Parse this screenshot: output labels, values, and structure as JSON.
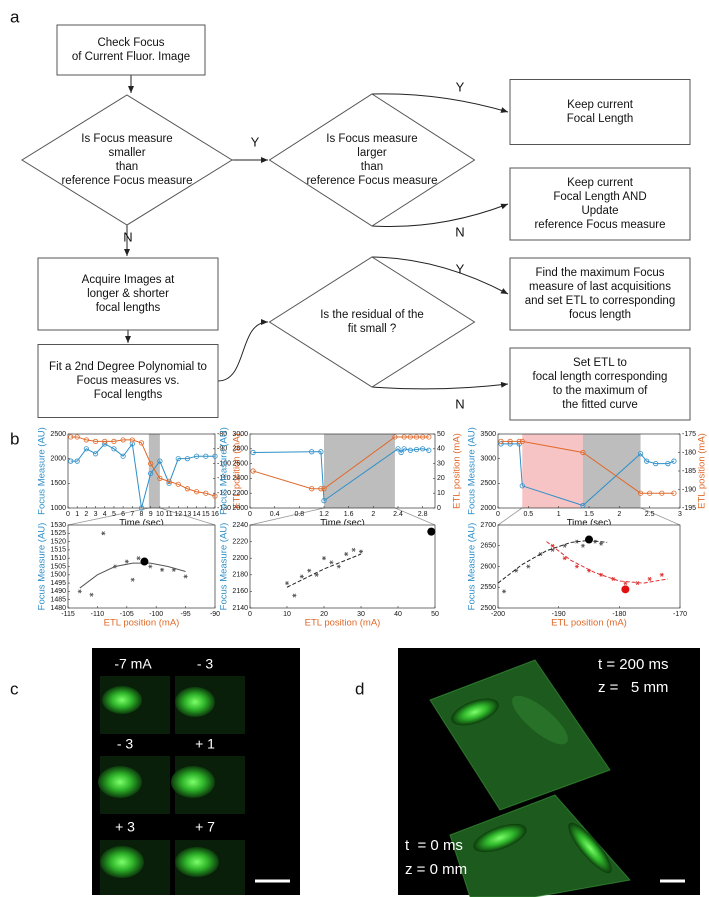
{
  "panels": [
    "a",
    "b",
    "c",
    "d"
  ],
  "flowchart": {
    "nodes": [
      {
        "lines": [
          "Check Focus",
          "of Current Fluor. Image"
        ]
      },
      {
        "lines": [
          "Is Focus measure",
          "smaller",
          "than",
          "reference Focus measure"
        ]
      },
      {
        "lines": [
          "Is Focus measure",
          "larger",
          "than",
          "reference Focus measure"
        ]
      },
      {
        "lines": [
          "Keep current",
          "Focal Length"
        ]
      },
      {
        "lines": [
          "Keep current",
          "Focal Length AND",
          "Update",
          "reference Focus measure"
        ]
      },
      {
        "lines": [
          "Acquire Images at",
          "longer & shorter",
          "focal lengths"
        ]
      },
      {
        "lines": [
          "Fit a 2nd Degree Polynomial to",
          "Focus measures vs.",
          "Focal lengths"
        ]
      },
      {
        "lines": [
          "Is the residual of the",
          "fit small ?"
        ]
      },
      {
        "lines": [
          "Find the maximum Focus",
          "measure of last acquisitions",
          "and set ETL to corresponding",
          "focus length"
        ]
      },
      {
        "lines": [
          "Set ETL to",
          "focal length corresponding",
          "to the maximum of",
          "the fitted curve"
        ]
      }
    ],
    "edge_labels": [
      "Y",
      "Y",
      "N",
      "N",
      "Y",
      "N"
    ]
  },
  "chart_data": [
    {
      "type": "line",
      "xlabel": "Time (sec)",
      "ylabel": "Focus Measure (AU)",
      "y2label": "ETL position (mA)",
      "y_color": "#2f8fc9",
      "y2_color": "#e0692a",
      "x_color": "#111",
      "xlim": [
        0,
        16
      ],
      "xticks": [
        0,
        1,
        2,
        3,
        4,
        5,
        6,
        7,
        8,
        9,
        10,
        11,
        12,
        13,
        14,
        15,
        16
      ],
      "ylim": [
        1000,
        2500
      ],
      "yticks": [
        1000,
        1500,
        2000,
        2500
      ],
      "y2lim": [
        -130,
        -80
      ],
      "y2ticks": [
        -130,
        -120,
        -110,
        -100,
        -90,
        -80
      ],
      "shade": [
        {
          "range": [
            8.8,
            10
          ],
          "color": "#bdbdbd"
        }
      ],
      "series": [
        {
          "style": "line_markers",
          "color": "#2f8fc9",
          "x": [
            0.3,
            1,
            2,
            3,
            4,
            5,
            6,
            7,
            8,
            9,
            10,
            11,
            12,
            13,
            14,
            15,
            16
          ],
          "values": [
            1950,
            1950,
            2200,
            2100,
            2300,
            2200,
            2050,
            2300,
            1000,
            1700,
            1950,
            1500,
            2000,
            2000,
            2050,
            2050,
            2050
          ]
        },
        {
          "style": "line_markers",
          "color": "#e0692a",
          "axis": "y2",
          "x": [
            0.3,
            1,
            2,
            3,
            4,
            5,
            6,
            7,
            8,
            9,
            10,
            11,
            12,
            13,
            14,
            15,
            16
          ],
          "values": [
            -82,
            -82,
            -84,
            -85,
            -85,
            -85,
            -84,
            -84,
            -86,
            -100,
            -110,
            -112,
            -114,
            -117,
            -119,
            -120,
            -122
          ]
        }
      ]
    },
    {
      "type": "line",
      "xlabel": "Time (sec)",
      "ylabel": "Focus Measure (AU)",
      "y2label": "ETL position (mA)",
      "y_color": "#2f8fc9",
      "y2_color": "#e0692a",
      "x_color": "#111",
      "xlim": [
        0,
        3
      ],
      "xticks": [
        0,
        0.4,
        0.8,
        1.2,
        1.6,
        2,
        2.4,
        2.8
      ],
      "ylim": [
        2000,
        3000
      ],
      "yticks": [
        2000,
        2200,
        2400,
        2600,
        2800,
        3000
      ],
      "y2lim": [
        0,
        50
      ],
      "y2ticks": [
        0,
        10,
        20,
        30,
        40,
        50
      ],
      "shade": [
        {
          "range": [
            1.2,
            2.35
          ],
          "color": "#bdbdbd"
        }
      ],
      "series": [
        {
          "style": "line_markers",
          "color": "#2f8fc9",
          "x": [
            0.05,
            1,
            1.15,
            1.2,
            2.4,
            2.45,
            2.5,
            2.6,
            2.7,
            2.8,
            2.9
          ],
          "values": [
            2750,
            2760,
            2760,
            2100,
            2800,
            2750,
            2800,
            2780,
            2790,
            2800,
            2780
          ]
        },
        {
          "style": "line_markers",
          "color": "#e0692a",
          "axis": "y2",
          "x": [
            0.05,
            1,
            1.15,
            1.2,
            2.35,
            2.5,
            2.6,
            2.7,
            2.8,
            2.9
          ],
          "values": [
            25,
            13,
            13,
            13,
            48,
            48,
            48,
            48,
            48,
            48
          ]
        }
      ]
    },
    {
      "type": "line",
      "xlabel": "Time (sec)",
      "ylabel": "Focus Measure (AU)",
      "y2label": "ETL position (mA)",
      "y_color": "#2f8fc9",
      "y2_color": "#e0692a",
      "x_color": "#111",
      "xlim": [
        0,
        3
      ],
      "xticks": [
        0,
        0.5,
        1,
        1.5,
        2,
        2.5,
        3
      ],
      "ylim": [
        2000,
        3500
      ],
      "yticks": [
        2000,
        2500,
        3000,
        3500
      ],
      "y2lim": [
        -195,
        -175
      ],
      "y2ticks": [
        -195,
        -190,
        -185,
        -180,
        -175
      ],
      "shade": [
        {
          "range": [
            0.4,
            1.4
          ],
          "color": "#f6c4c4"
        },
        {
          "range": [
            1.4,
            2.35
          ],
          "color": "#bdbdbd"
        }
      ],
      "series": [
        {
          "style": "line_markers",
          "color": "#2f8fc9",
          "x": [
            0.05,
            0.2,
            0.35,
            0.4,
            1.4,
            2.35,
            2.45,
            2.6,
            2.8,
            2.9
          ],
          "values": [
            3300,
            3300,
            3300,
            2450,
            2050,
            3100,
            2950,
            2900,
            2900,
            2950
          ]
        },
        {
          "style": "line_markers",
          "color": "#e0692a",
          "axis": "y2",
          "x": [
            0.05,
            0.2,
            0.35,
            0.4,
            1.4,
            2.35,
            2.5,
            2.7,
            2.9
          ],
          "values": [
            -177,
            -177,
            -177,
            -177,
            -180,
            -191,
            -191,
            -191,
            -191
          ]
        }
      ]
    },
    {
      "type": "scatter",
      "xlabel": "ETL position (mA)",
      "ylabel": "Focus Measure (AU)",
      "y_color": "#2f8fc9",
      "x_color": "#e0692a",
      "xlim": [
        -115,
        -90
      ],
      "xticks": [
        -115,
        -110,
        -105,
        -100,
        -95,
        -90
      ],
      "ylim": [
        1480,
        1530
      ],
      "yticks": [
        1480,
        1485,
        1490,
        1495,
        1500,
        1505,
        1510,
        1515,
        1520,
        1525,
        1530
      ],
      "series": [
        {
          "style": "markers",
          "color": "#555",
          "x": [
            -113,
            -111,
            -109,
            -107,
            -105,
            -104,
            -103,
            -101,
            -99,
            -97,
            -95
          ],
          "values": [
            1490,
            1488,
            1525,
            1505,
            1508,
            1497,
            1510,
            1505,
            1503,
            1503,
            1499
          ]
        },
        {
          "style": "line",
          "color": "#555",
          "x": [
            -113,
            -110,
            -107,
            -104,
            -101,
            -98,
            -95
          ],
          "values": [
            1492,
            1500,
            1505,
            1507,
            1507,
            1505,
            1502
          ]
        },
        {
          "style": "dot",
          "color": "#000",
          "x": [
            -102
          ],
          "values": [
            1508
          ]
        }
      ]
    },
    {
      "type": "scatter",
      "xlabel": "ETL position (mA)",
      "ylabel": "Focus Measure (AU)",
      "y_color": "#2f8fc9",
      "x_color": "#e0692a",
      "xlim": [
        0,
        50
      ],
      "xticks": [
        0,
        10,
        20,
        30,
        40,
        50
      ],
      "ylim": [
        2140,
        2240
      ],
      "yticks": [
        2140,
        2160,
        2180,
        2200,
        2220,
        2240
      ],
      "series": [
        {
          "style": "markers",
          "color": "#555",
          "x": [
            10,
            12,
            14,
            16,
            18,
            20,
            22,
            24,
            26,
            28,
            30
          ],
          "values": [
            2170,
            2155,
            2178,
            2185,
            2180,
            2200,
            2195,
            2190,
            2205,
            2210,
            2208
          ]
        },
        {
          "style": "dashed",
          "color": "#222",
          "x": [
            10,
            20,
            30
          ],
          "values": [
            2165,
            2187,
            2205
          ]
        },
        {
          "style": "dot",
          "color": "#000",
          "x": [
            49
          ],
          "values": [
            2232
          ]
        }
      ]
    },
    {
      "type": "scatter",
      "xlabel": "ETL position (mA)",
      "ylabel": "Focus Measure (AU)",
      "y_color": "#2f8fc9",
      "x_color": "#e0692a",
      "xlim": [
        -200,
        -170
      ],
      "xticks": [
        -200,
        -190,
        -180,
        -170
      ],
      "ylim": [
        2500,
        2700
      ],
      "yticks": [
        2500,
        2550,
        2600,
        2650,
        2700
      ],
      "series": [
        {
          "style": "markers",
          "color": "#555",
          "x": [
            -199,
            -197,
            -195,
            -193,
            -191,
            -189,
            -187,
            -186,
            -184,
            -183
          ],
          "values": [
            2540,
            2590,
            2600,
            2630,
            2640,
            2650,
            2660,
            2650,
            2660,
            2655
          ]
        },
        {
          "style": "dashed",
          "color": "#222",
          "x": [
            -200,
            -196,
            -192,
            -188,
            -185,
            -182
          ],
          "values": [
            2560,
            2605,
            2638,
            2658,
            2663,
            2658
          ]
        },
        {
          "style": "dot",
          "color": "#000",
          "x": [
            -185
          ],
          "values": [
            2665
          ]
        },
        {
          "style": "markers",
          "color": "#e03030",
          "x": [
            -191,
            -189,
            -187,
            -185,
            -183,
            -181,
            -179,
            -177,
            -175,
            -173
          ],
          "values": [
            2650,
            2620,
            2600,
            2590,
            2580,
            2570,
            2560,
            2560,
            2570,
            2580
          ]
        },
        {
          "style": "dashed",
          "color": "#e03030",
          "x": [
            -192,
            -188,
            -184,
            -180,
            -176,
            -172
          ],
          "values": [
            2660,
            2615,
            2585,
            2565,
            2560,
            2570
          ]
        },
        {
          "style": "dot",
          "color": "#e01010",
          "x": [
            -179
          ],
          "values": [
            2545
          ]
        }
      ]
    }
  ],
  "panel_c": {
    "labels": [
      "-7 mA",
      "- 3",
      "- 3",
      "+ 1",
      "+ 3",
      "+ 7"
    ]
  },
  "panel_d": {
    "labels": [
      "t = 200 ms",
      "z =   5 mm",
      "t  = 0 ms",
      "z = 0 mm"
    ]
  }
}
